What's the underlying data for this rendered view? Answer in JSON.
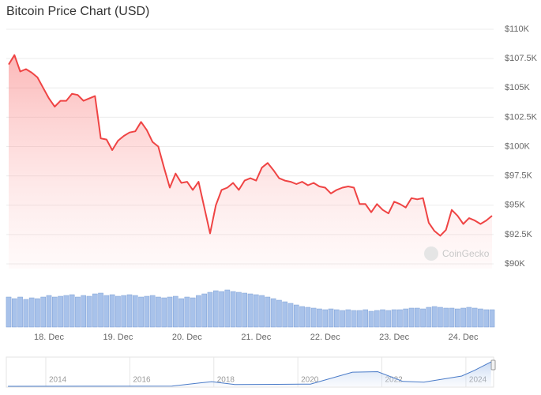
{
  "chart_data": [
    {
      "type": "area",
      "title": "Bitcoin Price Chart (USD)",
      "watermark": "CoinGecko",
      "color": "#ef4444",
      "grid": true,
      "categories": [
        null,
        null,
        null,
        null,
        null,
        null,
        null,
        "18. Dec",
        null,
        null,
        null,
        null,
        null,
        null,
        null,
        null,
        null,
        null,
        null,
        "19. Dec",
        null,
        null,
        null,
        null,
        null,
        null,
        null,
        null,
        null,
        null,
        null,
        "20. Dec",
        null,
        null,
        null,
        null,
        null,
        null,
        null,
        null,
        null,
        null,
        null,
        "21. Dec",
        null,
        null,
        null,
        null,
        null,
        null,
        null,
        null,
        null,
        null,
        null,
        "22. Dec",
        null,
        null,
        null,
        null,
        null,
        null,
        null,
        null,
        null,
        null,
        null,
        "23. Dec",
        null,
        null,
        null,
        null,
        null,
        null,
        null,
        null,
        null,
        null,
        null,
        "24. Dec",
        null,
        null,
        null,
        null,
        null
      ],
      "values": [
        107000,
        107800,
        106400,
        106600,
        106300,
        105900,
        105000,
        104100,
        103400,
        103900,
        103900,
        104500,
        104400,
        103900,
        104100,
        104300,
        100700,
        100600,
        99700,
        100500,
        100900,
        101200,
        101300,
        102100,
        101400,
        100400,
        100000,
        98200,
        96500,
        97700,
        96900,
        97000,
        96300,
        97000,
        94800,
        92600,
        95000,
        96300,
        96500,
        96900,
        96300,
        97100,
        97300,
        97100,
        98200,
        98600,
        98000,
        97300,
        97100,
        97000,
        96800,
        97000,
        96700,
        96900,
        96600,
        96500,
        96000,
        96300,
        96500,
        96600,
        96500,
        95100,
        95100,
        94400,
        95100,
        94600,
        94300,
        95300,
        95100,
        94800,
        95600,
        95500,
        95600,
        93500,
        92800,
        92400,
        92900,
        94600,
        94100,
        93400,
        93900,
        93700,
        93400,
        93700,
        94100
      ],
      "ylim": [
        90000,
        110000
      ],
      "yticks": [
        {
          "value": 90000,
          "label": "$90K"
        },
        {
          "value": 92500,
          "label": "$92.5K"
        },
        {
          "value": 95000,
          "label": "$95K"
        },
        {
          "value": 97500,
          "label": "$97.5K"
        },
        {
          "value": 100000,
          "label": "$100K"
        },
        {
          "value": 102500,
          "label": "$102.5K"
        },
        {
          "value": 105000,
          "label": "$105K"
        },
        {
          "value": 107500,
          "label": "$107.5K"
        },
        {
          "value": 110000,
          "label": "$110K"
        }
      ]
    },
    {
      "type": "bar",
      "color": "#a8c2ea",
      "values": [
        38,
        36,
        38,
        35,
        37,
        36,
        38,
        40,
        38,
        39,
        40,
        41,
        38,
        40,
        39,
        42,
        43,
        40,
        41,
        39,
        40,
        41,
        40,
        38,
        39,
        40,
        38,
        37,
        38,
        39,
        36,
        38,
        37,
        40,
        42,
        44,
        46,
        45,
        47,
        45,
        44,
        43,
        42,
        41,
        40,
        38,
        36,
        34,
        32,
        30,
        28,
        26,
        25,
        24,
        23,
        22,
        23,
        22,
        21,
        22,
        21,
        21,
        22,
        20,
        21,
        22,
        21,
        22,
        22,
        23,
        24,
        24,
        23,
        25,
        26,
        25,
        24,
        24,
        23,
        24,
        25,
        24,
        23,
        22,
        22
      ],
      "ylim": [
        0,
        60
      ]
    },
    {
      "type": "line",
      "color": "#4a7bc8",
      "x": [
        2013.1,
        2015,
        2017,
        2017.95,
        2018.5,
        2019.5,
        2020.3,
        2021.3,
        2021.9,
        2022.5,
        2023,
        2023.9,
        2024.2,
        2024.6
      ],
      "values": [
        100,
        300,
        1000,
        19000,
        7000,
        8000,
        9000,
        58000,
        60000,
        20000,
        17000,
        42000,
        65000,
        100000
      ],
      "xlim": [
        2013.06,
        2024.66
      ],
      "xticks": [
        2014,
        2016,
        2018,
        2020,
        2022,
        2024
      ],
      "ylim": [
        0,
        110000
      ]
    }
  ]
}
